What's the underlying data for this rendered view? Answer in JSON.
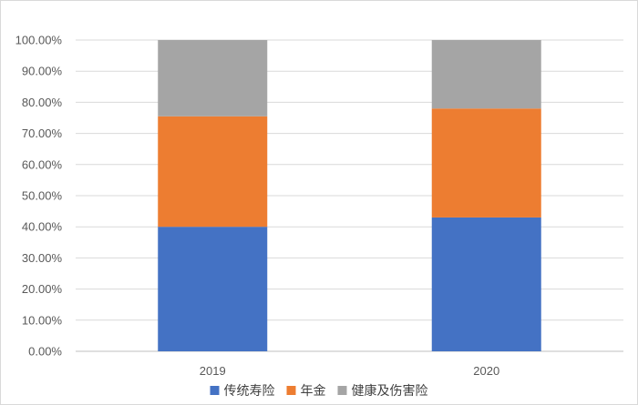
{
  "chart_data": {
    "type": "bar",
    "stacked": true,
    "categories": [
      "2019",
      "2020"
    ],
    "series": [
      {
        "name": "传统寿险",
        "values": [
          40.0,
          43.0
        ],
        "color": "#4472C4"
      },
      {
        "name": "年金",
        "values": [
          35.5,
          35.0
        ],
        "color": "#ED7D31"
      },
      {
        "name": "健康及伤害险",
        "values": [
          24.5,
          22.0
        ],
        "color": "#A5A5A5"
      }
    ],
    "y_ticks": [
      "0.00%",
      "10.00%",
      "20.00%",
      "30.00%",
      "40.00%",
      "50.00%",
      "60.00%",
      "70.00%",
      "80.00%",
      "90.00%",
      "100.00%"
    ],
    "ylim": [
      0,
      100
    ],
    "grid": true,
    "legend_position": "bottom",
    "title": "",
    "xlabel": "",
    "ylabel": ""
  }
}
